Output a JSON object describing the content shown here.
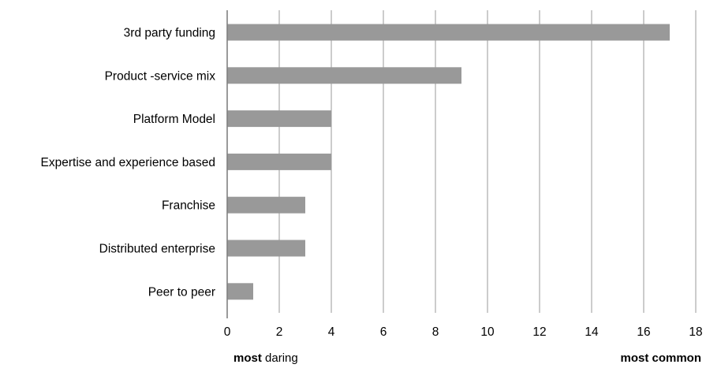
{
  "chart_data": {
    "type": "bar",
    "orientation": "horizontal",
    "categories": [
      "3rd party funding",
      "Product -service mix",
      "Platform Model",
      "Expertise  and experience based",
      "Franchise",
      "Distributed enterprise",
      "Peer to peer"
    ],
    "values": [
      17,
      9,
      4,
      4,
      3,
      3,
      1
    ],
    "xlim": [
      0,
      18
    ],
    "xticks": [
      0,
      2,
      4,
      6,
      8,
      10,
      12,
      14,
      16,
      18
    ],
    "grid": "vertical",
    "bar_color": "#999999",
    "grid_color": "#bfbfbf",
    "axis_color": "#808080",
    "annotations": {
      "left_bold": "most",
      "left_rest": " daring",
      "right": "most common"
    }
  }
}
